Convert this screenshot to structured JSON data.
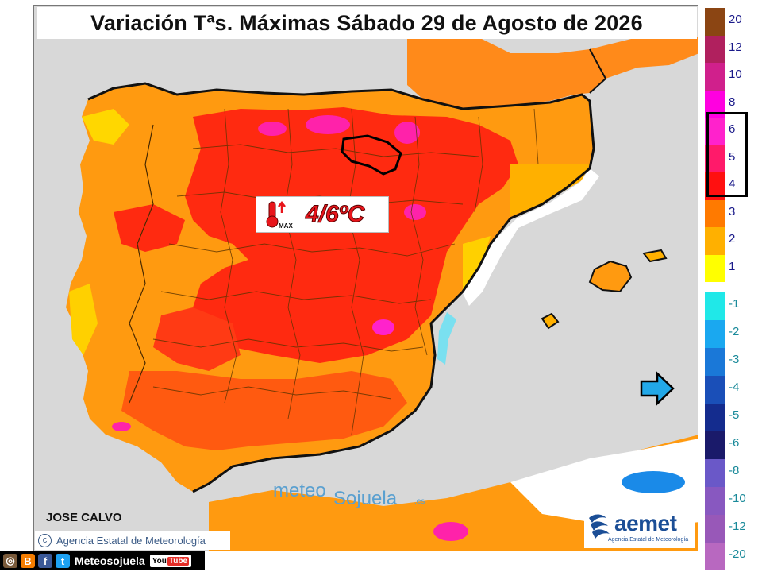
{
  "title": "Variación Tªs. Máximas Sábado 29 de Agosto de 2026",
  "anomaly_label": {
    "value": "4/6ºC",
    "icon": "thermometer-max-icon",
    "icon_text": "MAX"
  },
  "watermark": {
    "part1": "meteo",
    "part2": "Sojuela",
    "suffix": ".es"
  },
  "author": "JOSE CALVO",
  "copyright": {
    "symbol": "c",
    "text": "Agencia Estatal de Meteorología"
  },
  "aemet_logo": {
    "name": "aemet",
    "subtitle": "Agencia Estatal de Meteorología"
  },
  "social": {
    "icons": [
      "instagram-icon",
      "blogger-icon",
      "facebook-icon",
      "twitter-icon"
    ],
    "handle": "Meteosojuela",
    "youtube_label_a": "You",
    "youtube_label_b": "Tube"
  },
  "legend": {
    "highlighted_range": [
      "4",
      "6"
    ],
    "items": [
      {
        "label": "20",
        "color": "#8b4513"
      },
      {
        "label": "12",
        "color": "#b0205e"
      },
      {
        "label": "10",
        "color": "#d0208c"
      },
      {
        "label": "8",
        "color": "#ff00e0"
      },
      {
        "label": "6",
        "color": "#ff22cc"
      },
      {
        "label": "5",
        "color": "#ff1a6a"
      },
      {
        "label": "4",
        "color": "#ff1010"
      },
      {
        "label": "3",
        "color": "#ff7a00"
      },
      {
        "label": "2",
        "color": "#ffb000"
      },
      {
        "label": "1",
        "color": "#ffff00"
      },
      {
        "label": "-1",
        "color": "#20e8e8"
      },
      {
        "label": "-2",
        "color": "#1aa8f0"
      },
      {
        "label": "-3",
        "color": "#1a78d8"
      },
      {
        "label": "-4",
        "color": "#1a4fb8"
      },
      {
        "label": "-5",
        "color": "#142c8e"
      },
      {
        "label": "-6",
        "color": "#1a1a6a"
      },
      {
        "label": "-8",
        "color": "#6a58c8"
      },
      {
        "label": "-10",
        "color": "#8858c0"
      },
      {
        "label": "-12",
        "color": "#9858b8"
      },
      {
        "label": "-20",
        "color": "#b868c0"
      }
    ]
  },
  "colors": {
    "sea": "#d8d8d8",
    "title_text": "#111111",
    "anomaly_text": "#e8151b",
    "aemet_blue": "#1b4e96",
    "arrow": "#22a8e8"
  }
}
